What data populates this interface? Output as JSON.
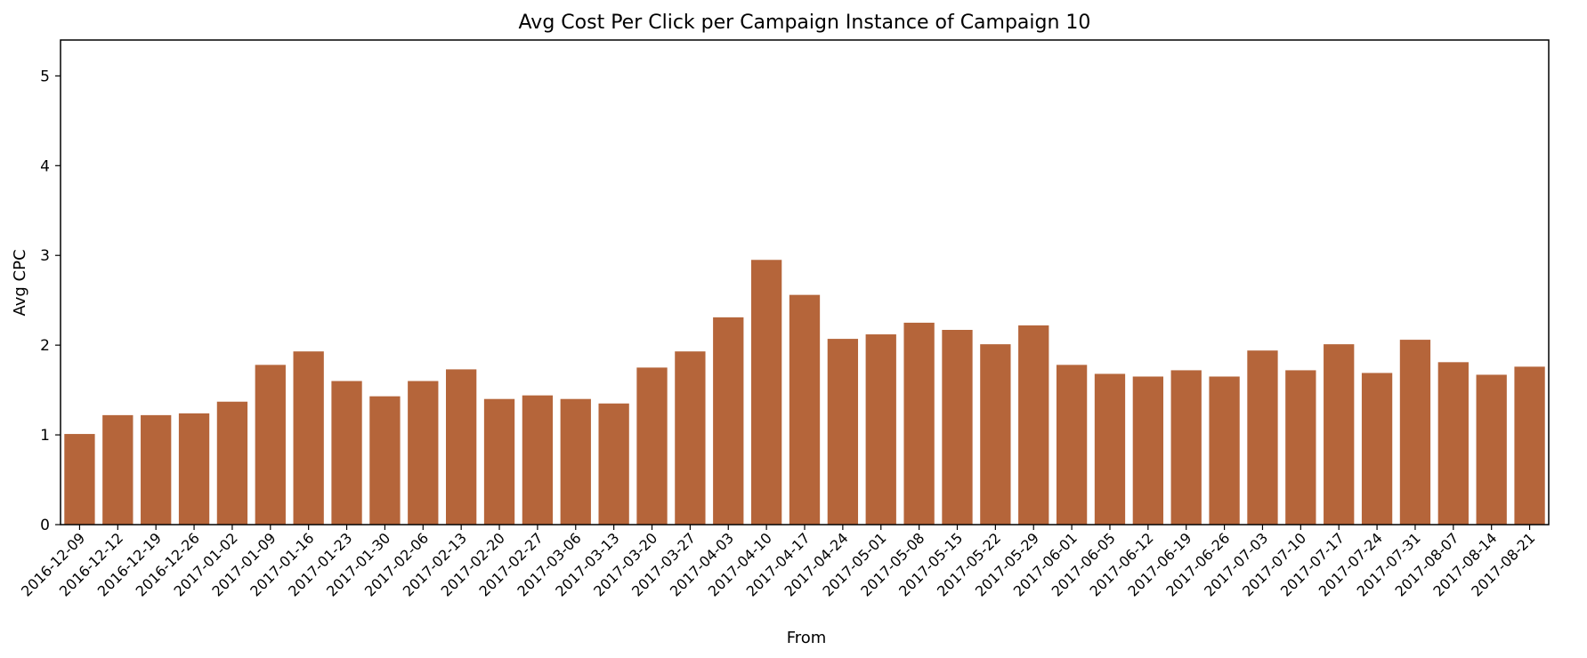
{
  "chart_data": {
    "type": "bar",
    "title": "Avg Cost Per Click per Campaign Instance of Campaign 10",
    "xlabel": "From",
    "ylabel": "Avg CPC",
    "ylim": [
      0,
      5.4
    ],
    "yticks": [
      0,
      1,
      2,
      3,
      4,
      5
    ],
    "grid": false,
    "bar_color": "#b5653a",
    "categories": [
      "2016-12-09",
      "2016-12-12",
      "2016-12-19",
      "2016-12-26",
      "2017-01-02",
      "2017-01-09",
      "2017-01-16",
      "2017-01-23",
      "2017-01-30",
      "2017-02-06",
      "2017-02-13",
      "2017-02-20",
      "2017-02-27",
      "2017-03-06",
      "2017-03-13",
      "2017-03-20",
      "2017-03-27",
      "2017-04-03",
      "2017-04-10",
      "2017-04-17",
      "2017-04-24",
      "2017-05-01",
      "2017-05-08",
      "2017-05-15",
      "2017-05-22",
      "2017-05-29",
      "2017-06-01",
      "2017-06-05",
      "2017-06-12",
      "2017-06-19",
      "2017-06-26",
      "2017-07-03",
      "2017-07-10",
      "2017-07-17",
      "2017-07-24",
      "2017-07-31",
      "2017-08-07",
      "2017-08-14",
      "2017-08-21"
    ],
    "values": [
      1.01,
      1.22,
      1.22,
      1.24,
      1.37,
      1.78,
      1.93,
      1.6,
      1.43,
      1.6,
      1.73,
      1.4,
      1.44,
      1.4,
      1.35,
      1.75,
      1.93,
      2.31,
      2.95,
      2.56,
      2.07,
      2.12,
      2.25,
      2.17,
      2.01,
      2.22,
      1.78,
      1.68,
      1.65,
      1.72,
      1.65,
      1.94,
      1.72,
      2.01,
      1.69,
      2.06,
      1.81,
      1.67,
      1.76
    ]
  }
}
